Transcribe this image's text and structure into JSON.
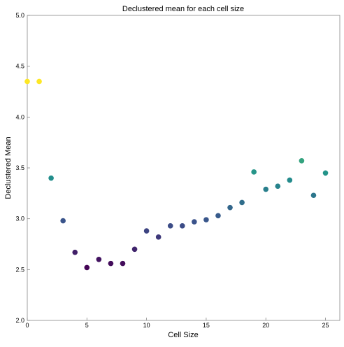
{
  "chart_data": {
    "type": "scatter",
    "title": "Declustered mean for each cell size",
    "xlabel": "Cell Size",
    "ylabel": "Declustered Mean",
    "xlim": [
      0,
      26.2
    ],
    "ylim": [
      2.0,
      5.0
    ],
    "xticks": [
      0,
      5,
      10,
      15,
      20,
      25
    ],
    "yticks": [
      2.0,
      2.5,
      3.0,
      3.5,
      4.0,
      4.5,
      5.0
    ],
    "xtick_labels": [
      "0",
      "5",
      "10",
      "15",
      "20",
      "25"
    ],
    "ytick_labels": [
      "2.0",
      "2.5",
      "3.0",
      "3.5",
      "4.0",
      "4.5",
      "5.0"
    ],
    "grid": false,
    "colormap": "viridis",
    "point_color_range": [
      2.5,
      4.35
    ],
    "x": [
      0,
      1,
      2,
      3,
      4,
      5,
      6,
      7,
      8,
      9,
      10,
      11,
      12,
      13,
      14,
      15,
      16,
      17,
      18,
      19,
      20,
      21,
      22,
      23,
      24,
      25
    ],
    "y": [
      4.35,
      4.35,
      3.4,
      2.98,
      2.67,
      2.52,
      2.6,
      2.56,
      2.56,
      2.7,
      2.88,
      2.82,
      2.93,
      2.93,
      2.97,
      2.99,
      3.03,
      3.11,
      3.16,
      3.46,
      3.29,
      3.32,
      3.38,
      3.57,
      3.23,
      3.45
    ]
  }
}
